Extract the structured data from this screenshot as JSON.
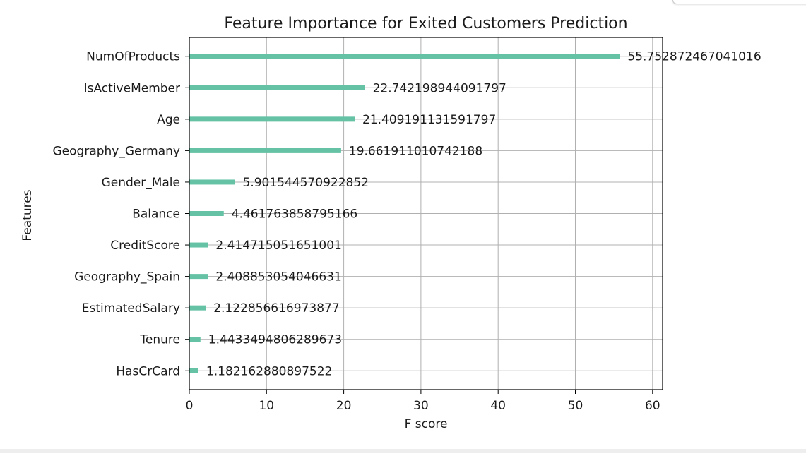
{
  "chart_data": {
    "type": "bar",
    "orientation": "horizontal",
    "title": "Feature Importance for Exited Customers Prediction",
    "xlabel": "F score",
    "ylabel": "Features",
    "xlim": [
      0,
      61.3
    ],
    "xticks": [
      0,
      10,
      20,
      30,
      40,
      50,
      60
    ],
    "grid": true,
    "bar_color": "#66c2a5",
    "categories": [
      "NumOfProducts",
      "IsActiveMember",
      "Age",
      "Geography_Germany",
      "Gender_Male",
      "Balance",
      "CreditScore",
      "Geography_Spain",
      "EstimatedSalary",
      "Tenure",
      "HasCrCard"
    ],
    "values": [
      55.752872467041016,
      22.742198944091797,
      21.409191131591797,
      19.661911010742188,
      5.901544570922852,
      4.461763858795166,
      2.414715051651001,
      2.408853054046631,
      2.122856616973877,
      1.4433494806289673,
      1.182162880897522
    ],
    "value_labels": [
      "55.752872467041016",
      "22.742198944091797",
      "21.409191131591797",
      "19.661911010742188",
      "5.901544570922852",
      "4.461763858795166",
      "2.414715051651001",
      "2.408853054046631",
      "2.122856616973877",
      "1.4433494806289673",
      "1.182162880897522"
    ]
  }
}
